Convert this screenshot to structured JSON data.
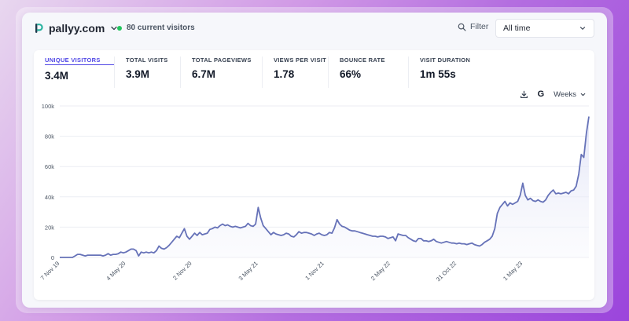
{
  "header": {
    "site_name": "pallyy.com",
    "live_text": "80 current visitors",
    "filter_label": "Filter",
    "range_value": "All time"
  },
  "stats": [
    {
      "label": "UNIQUE VISITORS",
      "value": "3.4M",
      "active": true
    },
    {
      "label": "TOTAL VISITS",
      "value": "3.9M",
      "active": false
    },
    {
      "label": "TOTAL PAGEVIEWS",
      "value": "6.7M",
      "active": false
    },
    {
      "label": "VIEWS PER VISIT",
      "value": "1.78",
      "active": false
    },
    {
      "label": "BOUNCE RATE",
      "value": "66%",
      "active": false
    },
    {
      "label": "VISIT DURATION",
      "value": "1m 55s",
      "active": false
    }
  ],
  "toolbar": {
    "google_label": "G",
    "interval_label": "Weeks"
  },
  "colors": {
    "line": "#6672b8",
    "fill": "#eef0fa",
    "grid": "#eceef3",
    "accent": "#4f46e5"
  },
  "chart_data": {
    "type": "area",
    "series_name": "Unique visitors",
    "ylim": [
      0,
      100000
    ],
    "yticks": [
      0,
      20000,
      40000,
      60000,
      80000,
      100000
    ],
    "ytick_labels": [
      "0",
      "20k",
      "40k",
      "60k",
      "80k",
      "100k"
    ],
    "xtick_labels": [
      "7 Nov 19",
      "4 May 20",
      "2 Nov 20",
      "3 May 21",
      "1 Nov 21",
      "2 May 22",
      "31 Oct 22",
      "1 May 23"
    ],
    "xtick_index": [
      0,
      26,
      52,
      78,
      104,
      130,
      156,
      182
    ],
    "grid": true,
    "values": [
      0,
      0,
      0,
      0,
      0,
      0,
      1000,
      2000,
      2000,
      1500,
      1000,
      1500,
      1500,
      1500,
      1500,
      1500,
      1500,
      1000,
      1500,
      2500,
      1500,
      2000,
      2000,
      2500,
      3500,
      3000,
      3500,
      4500,
      5500,
      5500,
      4500,
      1000,
      3500,
      3000,
      3500,
      3000,
      3500,
      3000,
      4500,
      7500,
      6000,
      5500,
      6500,
      8000,
      10000,
      12000,
      14000,
      13000,
      16000,
      19000,
      14000,
      12000,
      14000,
      16000,
      14500,
      16500,
      15000,
      15500,
      16000,
      18500,
      19000,
      20000,
      19500,
      21000,
      22000,
      21000,
      21500,
      20500,
      20000,
      20500,
      20000,
      19500,
      20000,
      20500,
      22500,
      21000,
      20500,
      22000,
      33000,
      26000,
      21000,
      19000,
      17000,
      15000,
      16500,
      15500,
      15000,
      14500,
      15000,
      16000,
      15500,
      14000,
      13500,
      15000,
      17000,
      16000,
      16500,
      16500,
      16000,
      15500,
      14500,
      15500,
      16000,
      15000,
      14500,
      15000,
      16500,
      16000,
      19500,
      25000,
      22000,
      20500,
      20000,
      19000,
      18000,
      17500,
      17500,
      17000,
      16500,
      16000,
      15500,
      15000,
      14500,
      14000,
      14000,
      13500,
      14000,
      14000,
      13500,
      12500,
      13000,
      13500,
      11000,
      15500,
      15000,
      14500,
      14500,
      13000,
      12000,
      11000,
      10500,
      12500,
      12500,
      11000,
      11000,
      10500,
      11000,
      12000,
      10500,
      10000,
      9500,
      10000,
      10500,
      10000,
      9500,
      9500,
      9000,
      9500,
      9000,
      9000,
      8500,
      9000,
      9500,
      8500,
      8000,
      7500,
      8500,
      10000,
      11000,
      12000,
      14000,
      19000,
      29000,
      33000,
      35000,
      37000,
      34000,
      36000,
      35000,
      36000,
      37000,
      41000,
      49000,
      41000,
      38000,
      39000,
      37500,
      37000,
      38000,
      37000,
      36500,
      38000,
      41000,
      43000,
      44500,
      42000,
      42500,
      42000,
      42500,
      43000,
      42000,
      44000,
      44500,
      47000,
      55000,
      68000,
      66000,
      82000,
      93000
    ],
    "dashed_from_index": 218
  }
}
